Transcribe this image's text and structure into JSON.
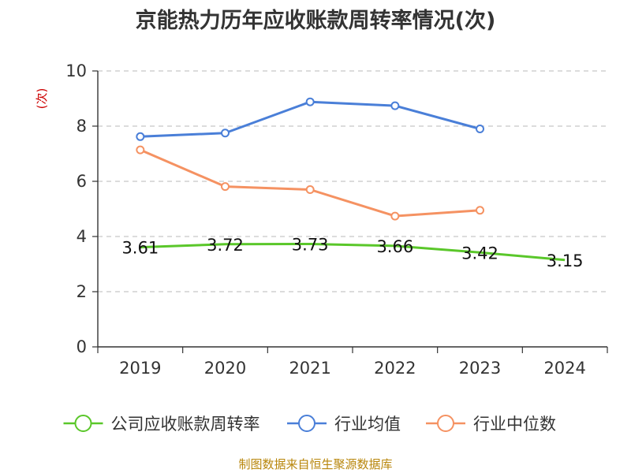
{
  "chart_data": {
    "type": "line",
    "title": "京能热力历年应收账款周转率情况(次)",
    "ylabel": "(次)",
    "xlabel": "",
    "ylim": [
      0,
      10
    ],
    "yticks": [
      0,
      2,
      4,
      6,
      8,
      10
    ],
    "categories": [
      "2019",
      "2020",
      "2021",
      "2022",
      "2023",
      "2024"
    ],
    "grid": true,
    "legend_position": "bottom",
    "series": [
      {
        "name": "公司应收账款周转率",
        "color": "#5ac72a",
        "values": [
          3.61,
          3.72,
          3.73,
          3.66,
          3.42,
          3.15
        ],
        "labels": [
          "3.61",
          "3.72",
          "3.73",
          "3.66",
          "3.42",
          "3.15"
        ]
      },
      {
        "name": "行业均值",
        "color": "#4a7fd8",
        "values": [
          7.62,
          7.75,
          8.88,
          8.74,
          7.9,
          null
        ]
      },
      {
        "name": "行业中位数",
        "color": "#f59262",
        "values": [
          7.14,
          5.81,
          5.7,
          4.74,
          4.95,
          null
        ]
      }
    ]
  },
  "source": "制图数据来自恒生聚源数据库"
}
